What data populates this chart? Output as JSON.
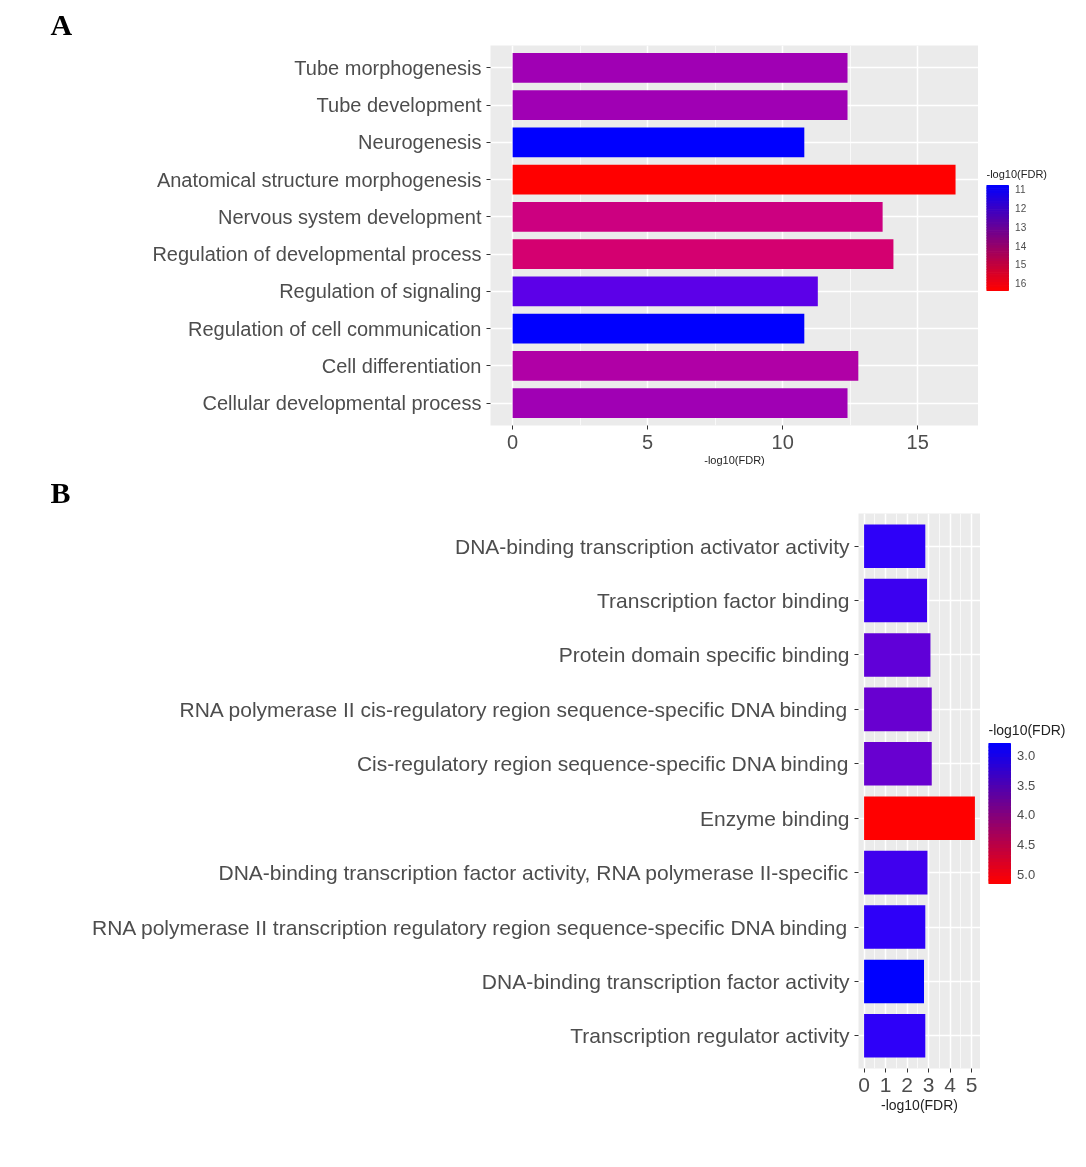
{
  "chart_data": [
    {
      "type": "bar",
      "orientation": "horizontal",
      "annotations": [
        "A"
      ],
      "xlabel": "-log10(FDR)",
      "clabel": "-log10(FDR)",
      "categories": [
        "Tube morphogenesis",
        "Tube development",
        "Neurogenesis",
        "Anatomical structure morphogenesis",
        "Nervous system development",
        "Regulation of developmental process",
        "Regulation of signaling",
        "Regulation of cell communication",
        "Cell differentiation",
        "Cellular developmental process"
      ],
      "values": [
        12.4,
        12.4,
        10.8,
        16.4,
        13.7,
        14.1,
        11.3,
        10.8,
        12.8,
        12.4
      ],
      "colors": [
        "#a000b4",
        "#a000b4",
        "#0000ff",
        "#ff0000",
        "#cc0080",
        "#d40070",
        "#5c00e8",
        "#0000ff",
        "#b000a6",
        "#a000b4"
      ],
      "xlim": [
        -0.82,
        17.25
      ],
      "xticks": [
        0,
        5,
        10,
        15
      ],
      "grid": true,
      "clim": [
        10.8,
        16.4
      ],
      "cticks": [
        11,
        12,
        13,
        14,
        15,
        16
      ]
    },
    {
      "type": "bar",
      "orientation": "horizontal",
      "annotations": [
        "B"
      ],
      "xlabel": "-log10(FDR)",
      "clabel": "-log10(FDR)",
      "categories": [
        "DNA-binding transcription activator activity",
        "Transcription factor binding",
        "Protein domain specific binding",
        "RNA polymerase II cis-regulatory region sequence-specific DNA binding",
        "Cis-regulatory region sequence-specific DNA binding",
        "Enzyme binding",
        "DNA-binding transcription factor activity, RNA polymerase II-specific",
        "RNA polymerase II transcription regulatory region sequence-specific DNA binding",
        "DNA-binding transcription factor activity",
        "Transcription regulator activity"
      ],
      "values": [
        2.85,
        2.93,
        3.09,
        3.15,
        3.15,
        5.16,
        2.95,
        2.85,
        2.79,
        2.85
      ],
      "colors": [
        "#2e00f8",
        "#3c00f0",
        "#6000d8",
        "#6800d0",
        "#6800d0",
        "#ff0000",
        "#4000ee",
        "#2e00f8",
        "#0000ff",
        "#2e00f8"
      ],
      "xlim": [
        -0.26,
        5.42
      ],
      "xticks": [
        0,
        1,
        2,
        3,
        4,
        5
      ],
      "grid": true,
      "clim": [
        2.79,
        5.16
      ],
      "cticks": [
        {
          "value": 3,
          "label": "3.0"
        },
        3.5,
        {
          "value": 4,
          "label": "4.0"
        },
        4.5,
        {
          "value": 5,
          "label": "5.0"
        }
      ]
    }
  ]
}
